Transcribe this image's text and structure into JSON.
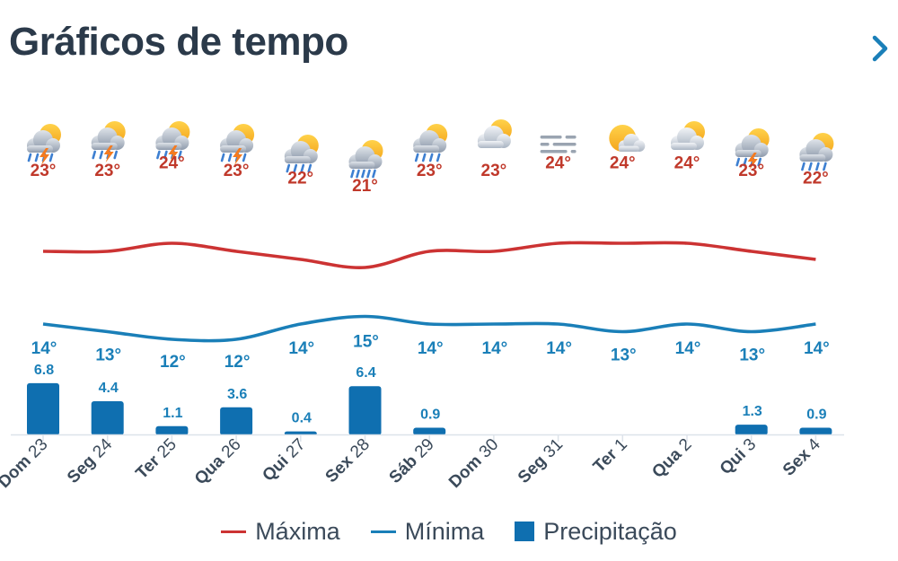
{
  "header": {
    "title": "Gráficos de tempo",
    "next_icon": "chevron-right-icon"
  },
  "colors": {
    "max": "#cc3333",
    "min": "#1a7fb8",
    "precip": "#0f6fb0",
    "maxText": "#c0392b",
    "minText": "#1a7fb8",
    "axis": "#dde3ea",
    "labelText": "#3b4a5a"
  },
  "chart_data": {
    "type": "line",
    "title": "Gráficos de tempo",
    "categories": [
      "Dom 23",
      "Seg 24",
      "Ter 25",
      "Qua 26",
      "Qui 27",
      "Sex 28",
      "Sáb 29",
      "Dom 30",
      "Seg 31",
      "Ter 1",
      "Qua 2",
      "Qui 3",
      "Sex 4"
    ],
    "icons": [
      "thunderstorm-icon",
      "thunderstorm-icon",
      "thunderstorm-icon",
      "thunderstorm-icon",
      "rain-icon",
      "heavy-rain-icon",
      "rain-icon",
      "partly-cloudy-icon",
      "fog-icon",
      "partly-sunny-icon",
      "partly-cloudy-icon",
      "thunderstorm-icon",
      "rain-icon"
    ],
    "series": [
      {
        "name": "Máxima",
        "type": "line",
        "unit": "°",
        "values": [
          23,
          23,
          24,
          23,
          22,
          21,
          23,
          23,
          24,
          24,
          24,
          23,
          22
        ]
      },
      {
        "name": "Mínima",
        "type": "line",
        "unit": "°",
        "values": [
          14,
          13,
          12,
          12,
          14,
          15,
          14,
          14,
          14,
          13,
          14,
          13,
          14
        ]
      },
      {
        "name": "Precipitação",
        "type": "bar",
        "unit": "mm",
        "values": [
          6.8,
          4.4,
          1.1,
          3.6,
          0.4,
          6.4,
          0.9,
          null,
          null,
          null,
          null,
          1.3,
          0.9
        ]
      }
    ],
    "precip_labels": [
      "6.8",
      "4.4",
      "1.1",
      "3.6",
      "0.4",
      "6.4",
      "0.9",
      "",
      "",
      "",
      "",
      "1.3",
      "0.9"
    ],
    "legend": {
      "position": "bottom",
      "items": [
        "Máxima",
        "Mínima",
        "Precipitação"
      ]
    }
  }
}
